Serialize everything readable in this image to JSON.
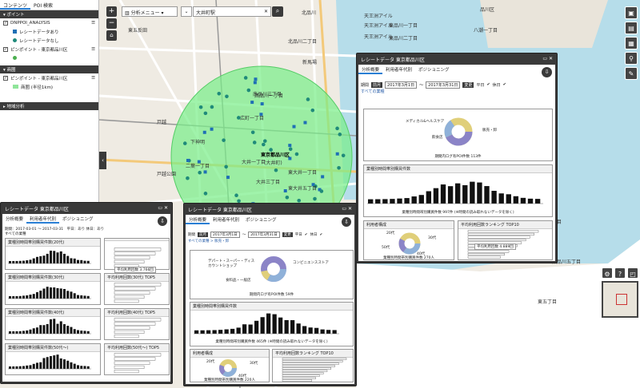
{
  "left": {
    "tabs": [
      "コンテンツ",
      "POI 検索"
    ],
    "point_header": "ポイント",
    "layer1": "DNPPOI_ANALYSIS",
    "legend1": "レシートデータあり",
    "legend2": "レシートデータなし",
    "layer2": "ピンポイント - 東京都品川区",
    "area_header": "商圏",
    "layer3": "ピンポイント - 東京都品川区",
    "legend3": "商圏 (半径1km)",
    "analysis_header": "地域分析"
  },
  "map_search": {
    "menu": "分析メニュー",
    "value": "大井町駅"
  },
  "map_labels": [
    {
      "t": "天王洲アイル"
    },
    {
      "t": "天王洲アイル"
    },
    {
      "t": "天王洲アイル"
    },
    {
      "t": "品川区"
    },
    {
      "t": "新馬場"
    },
    {
      "t": "北品川"
    },
    {
      "t": "東品川一丁目"
    },
    {
      "t": "東品川二丁目"
    },
    {
      "t": "北品川二丁目"
    },
    {
      "t": "南品川三丁目"
    },
    {
      "t": "広町一丁目"
    },
    {
      "t": "西品川一丁目"
    },
    {
      "t": "大井一丁目"
    },
    {
      "t": "二葉一丁目"
    },
    {
      "t": "東大井一丁目"
    },
    {
      "t": "戸越"
    },
    {
      "t": "戸越公園"
    },
    {
      "t": "下神明"
    },
    {
      "t": "東京都品川区"
    },
    {
      "t": "(大井町)"
    },
    {
      "t": "八潮"
    },
    {
      "t": "八潮一丁目"
    },
    {
      "t": "東大井五丁目"
    },
    {
      "t": "八潮四丁目"
    },
    {
      "t": "東五丁目"
    },
    {
      "t": "東大井四丁目"
    },
    {
      "t": "大井三丁目"
    },
    {
      "t": "東五反田"
    },
    {
      "t": "東品川五丁目"
    }
  ],
  "panel_main": {
    "title": "レシートデータ 東京都品川区",
    "tabs": [
      "分析概要",
      "利用者年代別",
      "ポジショニング"
    ],
    "period_label": "期間",
    "year_btn": "前月",
    "date_from": "2017年3月1日",
    "date_to": "2017年3月31日",
    "apply": "変更",
    "weekday": "平日",
    "holiday": "休日",
    "category": "すべての業種",
    "donut_labels": [
      "メディカル&ヘルスケア",
      "飲食店",
      "販売・卸"
    ],
    "donut_caption": "期間内ログ有POI件数 113件",
    "bar_title": "業種別時間帯別購買件数",
    "bar_caption": "業種別時間帯別購買件数 997件 (※時間の読み取れないデータを除く)",
    "age_title": "利用者構成",
    "age_labels": [
      "20代",
      "30代",
      "40代",
      "50代"
    ],
    "age_caption": "業種別時間帯別購買件数 270人",
    "rank_title": "平均利用回数ランキング TOP10",
    "rank_label": "平均利用回数 4.889回"
  },
  "panel_left": {
    "title": "レシートデータ 東京都品川区",
    "tabs": [
      "分析概要",
      "利用者年代別",
      "ポジショニング"
    ],
    "period": "期間：2017-03-01 〜 2017-03-31　平日：あり 休日：あり",
    "category": "すべての業種",
    "rows": [
      {
        "left": "業種別時間帯別購買件数(20代)",
        "right": ""
      },
      {
        "left": "業種別時間帯別購買件数(30代)",
        "right": "平均利用回数(30代) TOP5"
      },
      {
        "left": "業種別時間帯別購買件数(40代)",
        "right": "平均利用回数(40代) TOP5"
      },
      {
        "left": "業種別時間帯別購買件数(50代〜)",
        "right": "平均利用回数(50代〜) TOP5"
      }
    ],
    "tip": "平均利用回数 3.766回"
  },
  "panel_mid": {
    "title": "レシートデータ 東京都品川区",
    "tabs": [
      "分析概要",
      "利用者年代別",
      "ポジショニング"
    ],
    "period_label": "期間",
    "year_btn": "前月",
    "date_from": "2017年3月1日",
    "date_to": "2017年3月31日",
    "apply": "変更",
    "weekday": "平日",
    "holiday": "休日",
    "breadcrumb": "すべての業種 > 販売・卸",
    "donut_labels": [
      "デパート・スーパー・ディスカウントショップ",
      "コンビニエンスストア",
      "食料品・一般店"
    ],
    "donut_caption": "期間内ログ有POI件数 59件",
    "bar_title": "業種別時間帯別購買件数",
    "bar_caption": "業種別時間帯別購買件数 465件 (※時間の読み取れないデータを除く)",
    "age_title": "利用者構成",
    "age_labels": [
      "20代",
      "30代",
      "40代"
    ],
    "age_caption": "業種別時間帯別購買件数 220人",
    "rank_title": "平均利用回数ランキング TOP10"
  },
  "colors": {
    "accent": "#2a7fd4",
    "buffer": "#77ee88",
    "poi": "#1f8a7a",
    "bar": "#111111"
  }
}
